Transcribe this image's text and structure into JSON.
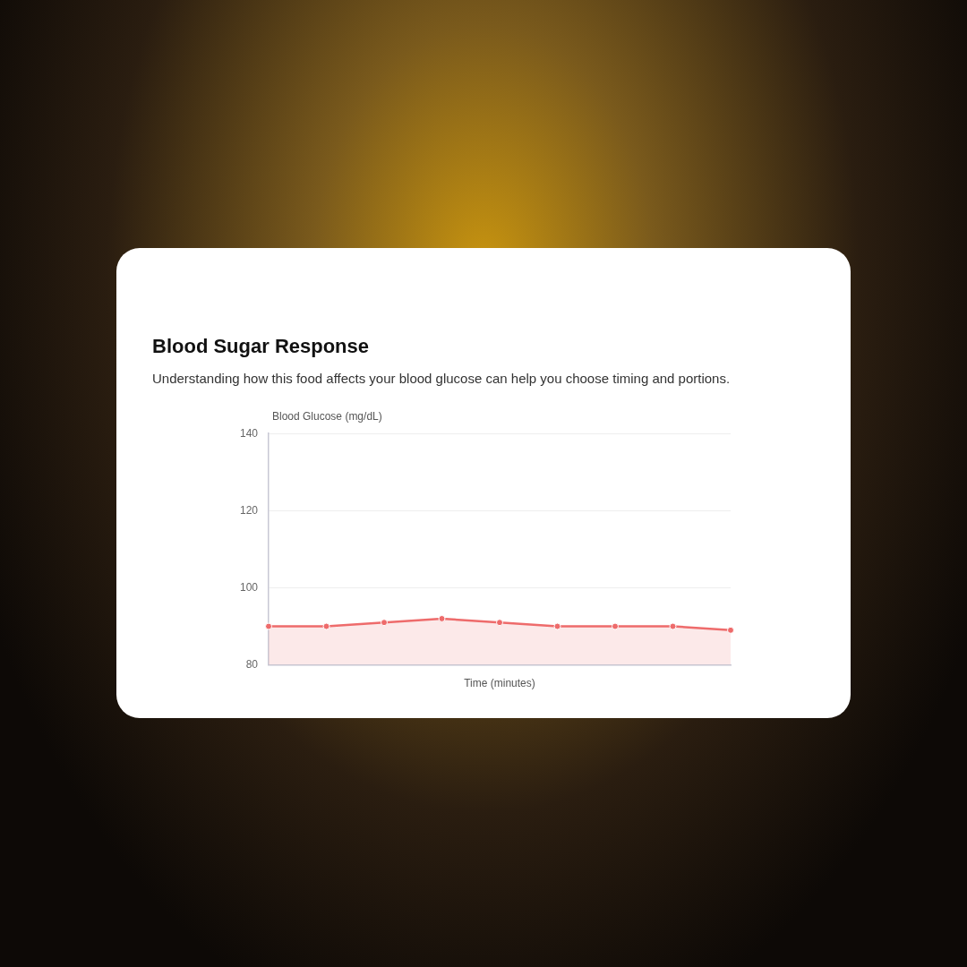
{
  "chart_data": {
    "type": "area",
    "title": "Blood Sugar Response",
    "subtitle": "Understanding how this food affects your blood glucose can help you choose timing and portions.",
    "xlabel": "Time (minutes)",
    "ylabel": "Blood Glucose (mg/dL)",
    "categories": [
      null,
      null,
      null,
      null,
      null,
      null,
      null,
      null,
      null
    ],
    "series": [
      {
        "color": "#ee6b6b",
        "values": [
          90,
          90,
          91,
          92,
          91,
          90,
          90,
          90,
          89
        ]
      }
    ],
    "ylim": [
      80,
      140
    ],
    "yticks": [
      80,
      100,
      120,
      140
    ],
    "grid": "y",
    "legend": false,
    "marker": "circle",
    "tick_labels": "y"
  }
}
